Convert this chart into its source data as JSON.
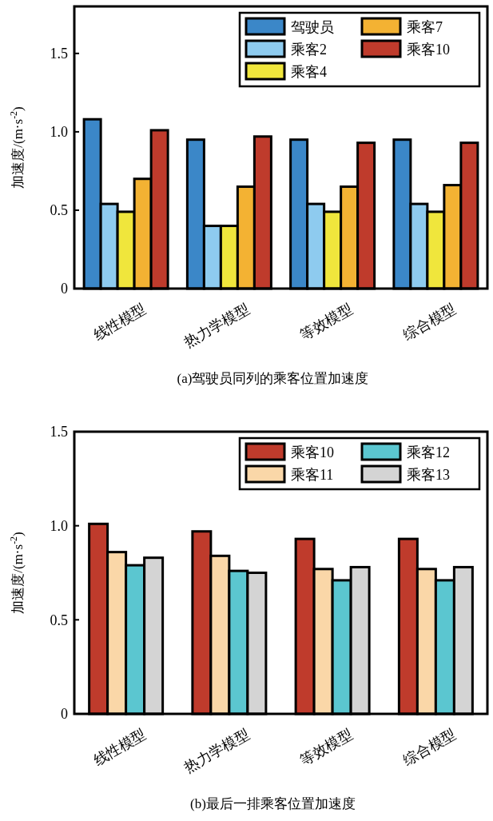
{
  "chart_data": [
    {
      "type": "bar",
      "title": "(a)驾驶员同列的乘客位置加速度",
      "ylabel": "加速度/(m·s$^{-2}$)",
      "categories": [
        "线性模型",
        "热力学模型",
        "等效模型",
        "综合模型"
      ],
      "ylim": [
        0,
        1.8
      ],
      "yticks": [
        0,
        {
          "value": 0.5,
          "label": "0.5"
        },
        {
          "value": 1,
          "label": "1.0"
        },
        {
          "value": 1.5,
          "label": "1.5"
        }
      ],
      "legend": "top right",
      "series": [
        {
          "name": "驾驶员",
          "color": "#3b87c8",
          "values": [
            1.08,
            0.95,
            0.95,
            0.95
          ]
        },
        {
          "name": "乘客2",
          "color": "#8ecbef",
          "values": [
            0.54,
            0.4,
            0.54,
            0.54
          ]
        },
        {
          "name": "乘客4",
          "color": "#f0e63c",
          "values": [
            0.49,
            0.4,
            0.49,
            0.49
          ]
        },
        {
          "name": "乘客7",
          "color": "#f3b233",
          "values": [
            0.7,
            0.65,
            0.65,
            0.66
          ]
        },
        {
          "name": "乘客10",
          "color": "#bf3b2c",
          "values": [
            1.01,
            0.97,
            0.93,
            0.93
          ]
        }
      ]
    },
    {
      "type": "bar",
      "title": "(b)最后一排乘客位置加速度",
      "ylabel": "加速度/(m·s$^{-2}$)",
      "categories": [
        "线性模型",
        "热力学模型",
        "等效模型",
        "综合模型"
      ],
      "ylim": [
        0,
        1.5
      ],
      "yticks": [
        0,
        {
          "value": 0.5,
          "label": "0.5"
        },
        {
          "value": 1,
          "label": "1.0"
        },
        {
          "value": 1.5,
          "label": "1.5"
        }
      ],
      "legend": "top right",
      "series": [
        {
          "name": "乘客10",
          "color": "#bf3b2c",
          "values": [
            1.01,
            0.97,
            0.93,
            0.93
          ]
        },
        {
          "name": "乘客11",
          "color": "#fad7a8",
          "values": [
            0.86,
            0.84,
            0.77,
            0.77
          ]
        },
        {
          "name": "乘客12",
          "color": "#5bc6d0",
          "values": [
            0.79,
            0.76,
            0.71,
            0.71
          ]
        },
        {
          "name": "乘客13",
          "color": "#d4d4d4",
          "values": [
            0.83,
            0.75,
            0.78,
            0.78
          ]
        }
      ]
    }
  ]
}
